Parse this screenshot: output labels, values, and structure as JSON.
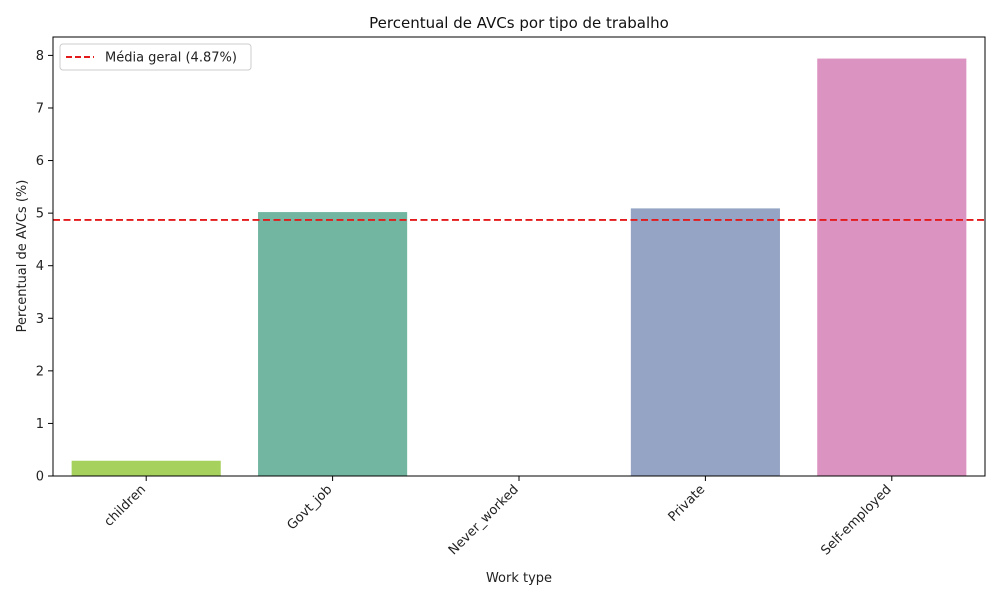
{
  "chart_data": {
    "type": "bar",
    "title": "Percentual de AVCs por tipo de trabalho",
    "xlabel": "Work type",
    "ylabel": "Percentual de AVCs (%)",
    "categories": [
      "children",
      "Govt_job",
      "Never_worked",
      "Private",
      "Self-employed"
    ],
    "values": [
      0.29,
      5.02,
      0.0,
      5.09,
      7.94
    ],
    "colors": [
      "#a6d15d",
      "#72b6a1",
      "#e99675",
      "#95a4c4",
      "#db93c1"
    ],
    "ylim": [
      0,
      8.35
    ],
    "yticks": [
      0,
      1,
      2,
      3,
      4,
      5,
      6,
      7,
      8
    ],
    "reference_line": {
      "label": "Média geral (4.87%)",
      "value": 4.87,
      "color": "#e31a1c",
      "style": "dashed"
    },
    "legend_position": "top-left",
    "grid": false
  }
}
